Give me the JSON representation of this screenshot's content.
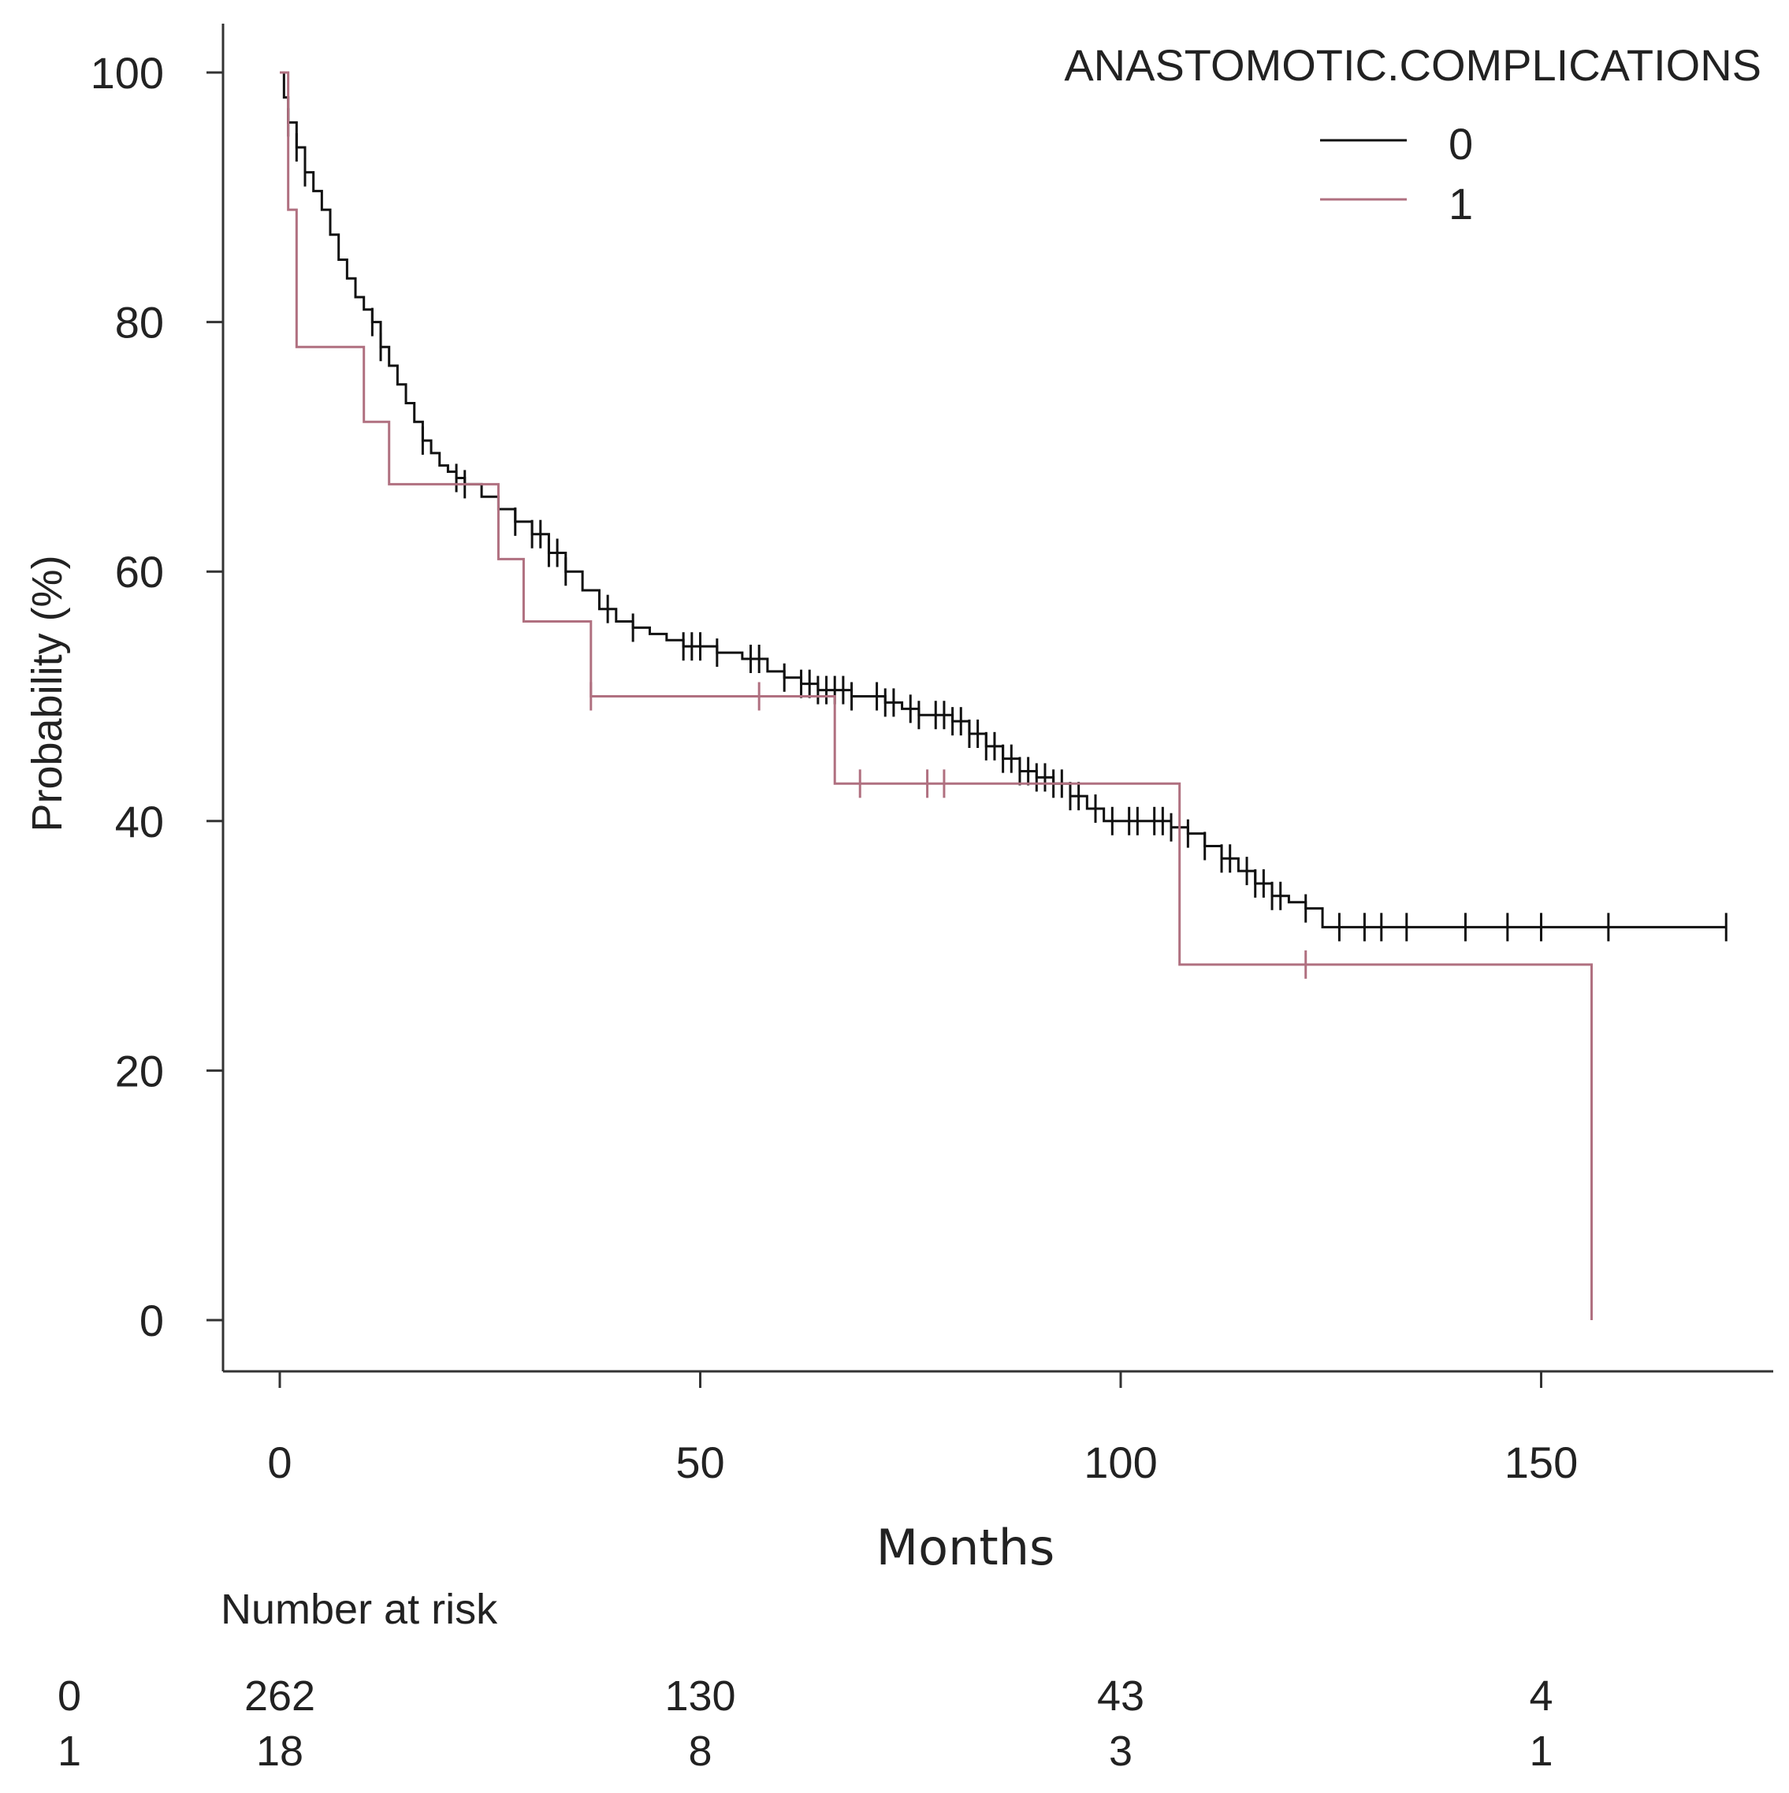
{
  "chart_data": {
    "type": "line",
    "subtype": "kaplan-meier",
    "title": "",
    "xlabel": "Months",
    "ylabel": "Probability (%)",
    "xlim": [
      -7,
      178
    ],
    "ylim": [
      -4,
      104
    ],
    "x_ticks": [
      0,
      50,
      100,
      150
    ],
    "y_ticks": [
      0,
      20,
      40,
      60,
      80,
      100
    ],
    "grid": false,
    "legend": {
      "title": "ANASTOMOTIC.COMPLICATIONS",
      "position": "top-right"
    },
    "series": [
      {
        "name": "0",
        "color": "#111111",
        "x": [
          0,
          0.5,
          1,
          2,
          3,
          4,
          5,
          6,
          7,
          8,
          9,
          10,
          11,
          12,
          13,
          14,
          15,
          16,
          17,
          18,
          19,
          20,
          21,
          22,
          24,
          26,
          28,
          30,
          32,
          34,
          36,
          38,
          40,
          42,
          44,
          46,
          48,
          50,
          52,
          55,
          58,
          60,
          62,
          64,
          66,
          68,
          70,
          72,
          74,
          76,
          78,
          80,
          82,
          84,
          86,
          88,
          90,
          92,
          94,
          96,
          98,
          100,
          104,
          106,
          108,
          110,
          112,
          114,
          116,
          118,
          120,
          122,
          124,
          172
        ],
        "y": [
          100,
          98,
          96,
          94,
          92,
          90.5,
          89,
          87,
          85,
          83.5,
          82,
          81,
          80,
          78,
          76.5,
          75,
          73.5,
          72,
          70.5,
          69.5,
          68.5,
          68,
          67.5,
          67,
          66,
          65,
          64,
          63,
          61.5,
          60,
          58.5,
          57,
          56,
          55.5,
          55,
          54.5,
          54,
          54,
          53.5,
          53,
          52,
          51.5,
          51,
          50.5,
          50.5,
          50,
          50,
          49.5,
          49,
          48.5,
          48.5,
          48,
          47,
          46,
          45,
          44,
          43.5,
          43,
          42,
          41,
          40,
          40,
          40,
          39.5,
          39,
          38,
          37,
          36,
          35,
          34,
          33.5,
          33,
          31.5,
          31.5
        ],
        "censor_x": [
          1,
          2,
          3,
          11,
          12,
          17,
          21,
          22,
          28,
          30,
          31,
          32,
          33,
          34,
          39,
          42,
          48,
          49,
          50,
          52,
          56,
          57,
          60,
          62,
          63,
          64,
          65,
          66,
          67,
          68,
          71,
          72,
          73,
          75,
          76,
          78,
          79,
          80,
          81,
          82,
          83,
          84,
          85,
          86,
          87,
          88,
          89,
          90,
          91,
          92,
          93,
          94,
          95,
          97,
          99,
          101,
          102,
          104,
          105,
          106,
          108,
          110,
          112,
          113,
          115,
          116,
          117,
          118,
          119,
          122,
          126,
          129,
          131,
          134,
          141,
          146,
          150,
          158,
          172
        ]
      },
      {
        "name": "1",
        "color": "#b07080",
        "x": [
          0,
          1,
          2,
          10,
          13,
          26,
          29,
          37,
          66,
          107,
          156,
          156
        ],
        "y": [
          100,
          89,
          78,
          72,
          67,
          61,
          56,
          50,
          43,
          28.5,
          28.5,
          0
        ],
        "censor_x": [
          37,
          57,
          69,
          77,
          79,
          122
        ]
      }
    ]
  },
  "risk_table": {
    "title": "Number at risk",
    "times": [
      0,
      50,
      100,
      150
    ],
    "rows": [
      {
        "label": "0",
        "values": [
          "262",
          "130",
          "43",
          "4"
        ]
      },
      {
        "label": "1",
        "values": [
          "18",
          "8",
          "3",
          "1"
        ]
      }
    ]
  }
}
